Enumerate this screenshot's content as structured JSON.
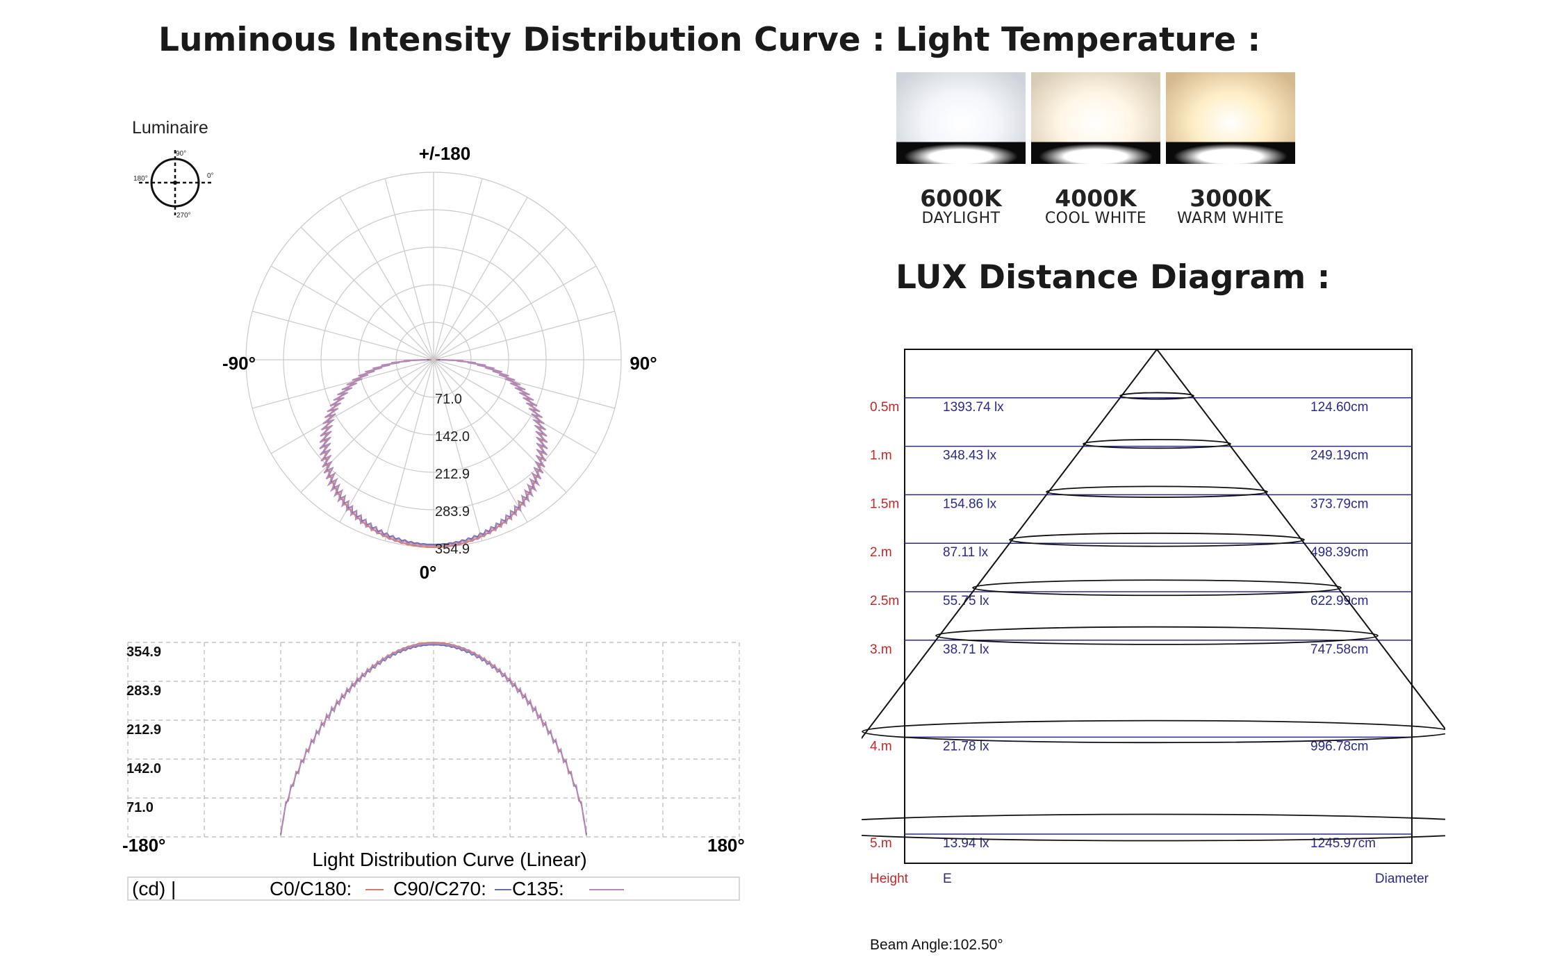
{
  "headings": {
    "intensity": "Luminous Intensity Distribution Curve :",
    "temperature": "Light Temperature :",
    "lux": "LUX Distance Diagram :"
  },
  "luminaire": {
    "label": "Luminaire",
    "labels": [
      "90°",
      "0°",
      "180°",
      "270°"
    ]
  },
  "temperatures": [
    {
      "temp": "6000K",
      "name": "DAYLIGHT",
      "glow": "#f4f6fb",
      "edge": "#cfd3d9"
    },
    {
      "temp": "4000K",
      "name": "COOL WHITE",
      "glow": "#fff6e6",
      "edge": "#d8cbb3"
    },
    {
      "temp": "3000K",
      "name": "WARM WHITE",
      "glow": "#ffefc8",
      "edge": "#d4b88e"
    }
  ],
  "chart_data": [
    {
      "type": "polar",
      "angle_labels": {
        "top": "+/-180",
        "left": "-90°",
        "right": "90°",
        "bottom": "0°"
      },
      "radial_ticks": [
        "71.0",
        "142.0",
        "212.9",
        "283.9",
        "354.9"
      ],
      "rmax": 354.9,
      "beam_half_angle_deg": 51.25,
      "series": [
        {
          "name": "C0/C180",
          "color": "#d47a6a"
        },
        {
          "name": "C90/C270",
          "color": "#6a6ab0"
        },
        {
          "name": "C135",
          "color": "#b48ab4"
        }
      ]
    },
    {
      "type": "line",
      "title": "Light Distribution Curve (Linear)",
      "xlim": [
        -180,
        180
      ],
      "x_tick_labels": {
        "left": "-180°",
        "right": "180°"
      },
      "ylim": [
        0,
        354.9
      ],
      "y_ticks": [
        "354.9",
        "283.9",
        "212.9",
        "142.0",
        "71.0"
      ],
      "legend_prefix": "(cd) |",
      "series": [
        {
          "name": "C0/C180:",
          "color": "#d47a6a",
          "peak": 354.9
        },
        {
          "name": "C90/C270:",
          "color": "#6a6ab0",
          "peak": 350.5
        },
        {
          "name": "C135:",
          "color": "#b48ab4",
          "peak": 353.0
        }
      ]
    },
    {
      "type": "table",
      "title": "LUX Distance Diagram",
      "rows": [
        {
          "height": "0.5m",
          "lux": "1393.74 lx",
          "diameter": "124.60cm",
          "h": 0.5
        },
        {
          "height": "1.m",
          "lux": "348.43 lx",
          "diameter": "249.19cm",
          "h": 1.0
        },
        {
          "height": "1.5m",
          "lux": "154.86 lx",
          "diameter": "373.79cm",
          "h": 1.5
        },
        {
          "height": "2.m",
          "lux": "87.11 lx",
          "diameter": "498.39cm",
          "h": 2.0
        },
        {
          "height": "2.5m",
          "lux": "55.75 lx",
          "diameter": "622.99cm",
          "h": 2.5
        },
        {
          "height": "3.m",
          "lux": "38.71 lx",
          "diameter": "747.58cm",
          "h": 3.0
        },
        {
          "height": "4.m",
          "lux": "21.78 lx",
          "diameter": "996.78cm",
          "h": 4.0
        },
        {
          "height": "5.m",
          "lux": "13.94 lx",
          "diameter": "1245.97cm",
          "h": 5.0
        }
      ],
      "footer": {
        "height": "Height",
        "lux": "E",
        "diameter": "Diameter"
      },
      "beam_angle": "Beam Angle:102.50°"
    }
  ]
}
